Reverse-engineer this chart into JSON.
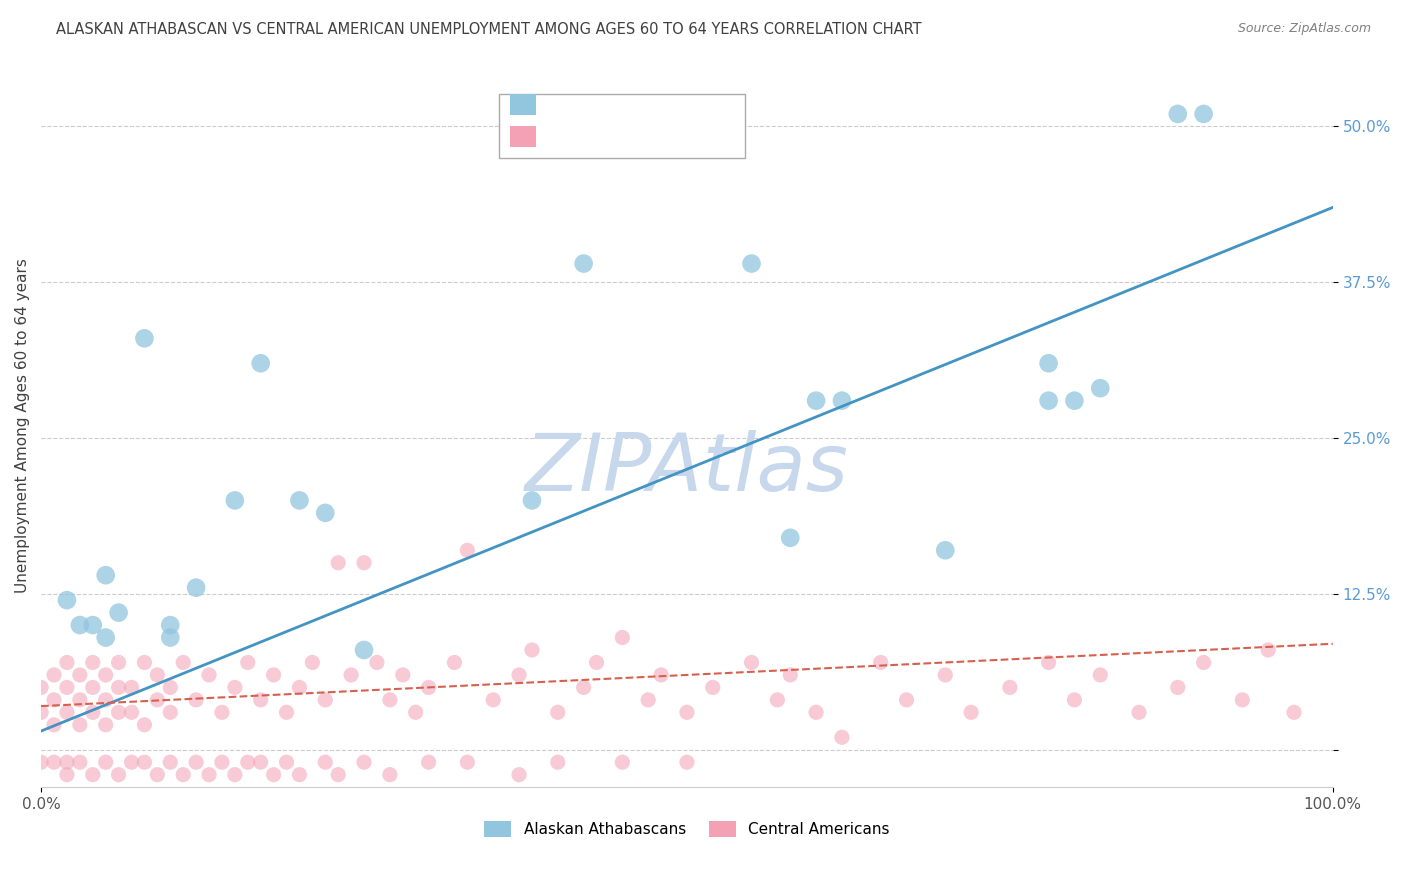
{
  "title": "ALASKAN ATHABASCAN VS CENTRAL AMERICAN UNEMPLOYMENT AMONG AGES 60 TO 64 YEARS CORRELATION CHART",
  "source": "Source: ZipAtlas.com",
  "ylabel": "Unemployment Among Ages 60 to 64 years",
  "xlim": [
    0,
    100
  ],
  "ylim": [
    -3,
    55
  ],
  "yticks": [
    0,
    12.5,
    25,
    37.5,
    50
  ],
  "ytick_labels": [
    "",
    "12.5%",
    "25.0%",
    "37.5%",
    "50.0%"
  ],
  "xticks": [
    0,
    100
  ],
  "xtick_labels": [
    "0.0%",
    "100.0%"
  ],
  "legend_blue_label": "Alaskan Athabascans",
  "legend_pink_label": "Central Americans",
  "blue_color": "#92c5de",
  "pink_color": "#f4a0b5",
  "blue_line_color": "#4393c3",
  "pink_line_color": "#d6604d",
  "watermark": "ZIPAtlas",
  "watermark_color": "#c8d8ec",
  "blue_scatter_x": [
    2,
    3,
    4,
    5,
    5,
    6,
    8,
    10,
    10,
    12,
    15,
    17,
    20,
    22,
    25,
    38,
    42,
    55,
    58,
    60,
    62,
    70,
    78,
    82,
    88,
    90,
    78,
    80
  ],
  "blue_scatter_y": [
    12,
    10,
    10,
    9,
    14,
    11,
    33,
    9,
    10,
    13,
    20,
    31,
    20,
    19,
    8,
    20,
    39,
    39,
    17,
    28,
    28,
    16,
    31,
    29,
    51,
    51,
    28,
    28
  ],
  "pink_scatter_x": [
    0,
    0,
    1,
    1,
    1,
    2,
    2,
    2,
    3,
    3,
    3,
    4,
    4,
    4,
    5,
    5,
    5,
    6,
    6,
    6,
    7,
    7,
    8,
    8,
    9,
    9,
    10,
    10,
    11,
    12,
    13,
    14,
    15,
    16,
    17,
    18,
    19,
    20,
    21,
    22,
    23,
    24,
    25,
    26,
    27,
    28,
    29,
    30,
    32,
    33,
    35,
    37,
    38,
    40,
    42,
    43,
    45,
    47,
    48,
    50,
    52,
    55,
    57,
    58,
    60,
    62,
    65,
    67,
    70,
    72,
    75,
    78,
    80,
    82,
    85,
    88,
    90,
    93,
    95,
    97
  ],
  "pink_scatter_y": [
    3,
    5,
    2,
    4,
    6,
    3,
    5,
    7,
    2,
    4,
    6,
    3,
    5,
    7,
    2,
    4,
    6,
    3,
    5,
    7,
    3,
    5,
    2,
    7,
    4,
    6,
    3,
    5,
    7,
    4,
    6,
    3,
    5,
    7,
    4,
    6,
    3,
    5,
    7,
    4,
    15,
    6,
    15,
    7,
    4,
    6,
    3,
    5,
    7,
    16,
    4,
    6,
    8,
    3,
    5,
    7,
    9,
    4,
    6,
    3,
    5,
    7,
    4,
    6,
    3,
    1,
    7,
    4,
    6,
    3,
    5,
    7,
    4,
    6,
    3,
    5,
    7,
    4,
    8,
    3
  ],
  "pink_neg_x": [
    0,
    1,
    2,
    2,
    3,
    4,
    5,
    6,
    7,
    8,
    9,
    10,
    11,
    12,
    13,
    14,
    15,
    16,
    17,
    18,
    19,
    20,
    22,
    23,
    25,
    27,
    30,
    33,
    37,
    40,
    45,
    50
  ],
  "pink_neg_y": [
    -1,
    -1,
    -2,
    -1,
    -1,
    -2,
    -1,
    -2,
    -1,
    -1,
    -2,
    -1,
    -2,
    -1,
    -2,
    -1,
    -2,
    -1,
    -1,
    -2,
    -1,
    -2,
    -1,
    -2,
    -1,
    -2,
    -1,
    -1,
    -2,
    -1,
    -1,
    -1
  ],
  "blue_line_x0": 0,
  "blue_line_x1": 100,
  "blue_line_y0": 1.5,
  "blue_line_y1": 43.5,
  "pink_line_x0": 0,
  "pink_line_x1": 100,
  "pink_line_y0": 3.5,
  "pink_line_y1": 8.5
}
